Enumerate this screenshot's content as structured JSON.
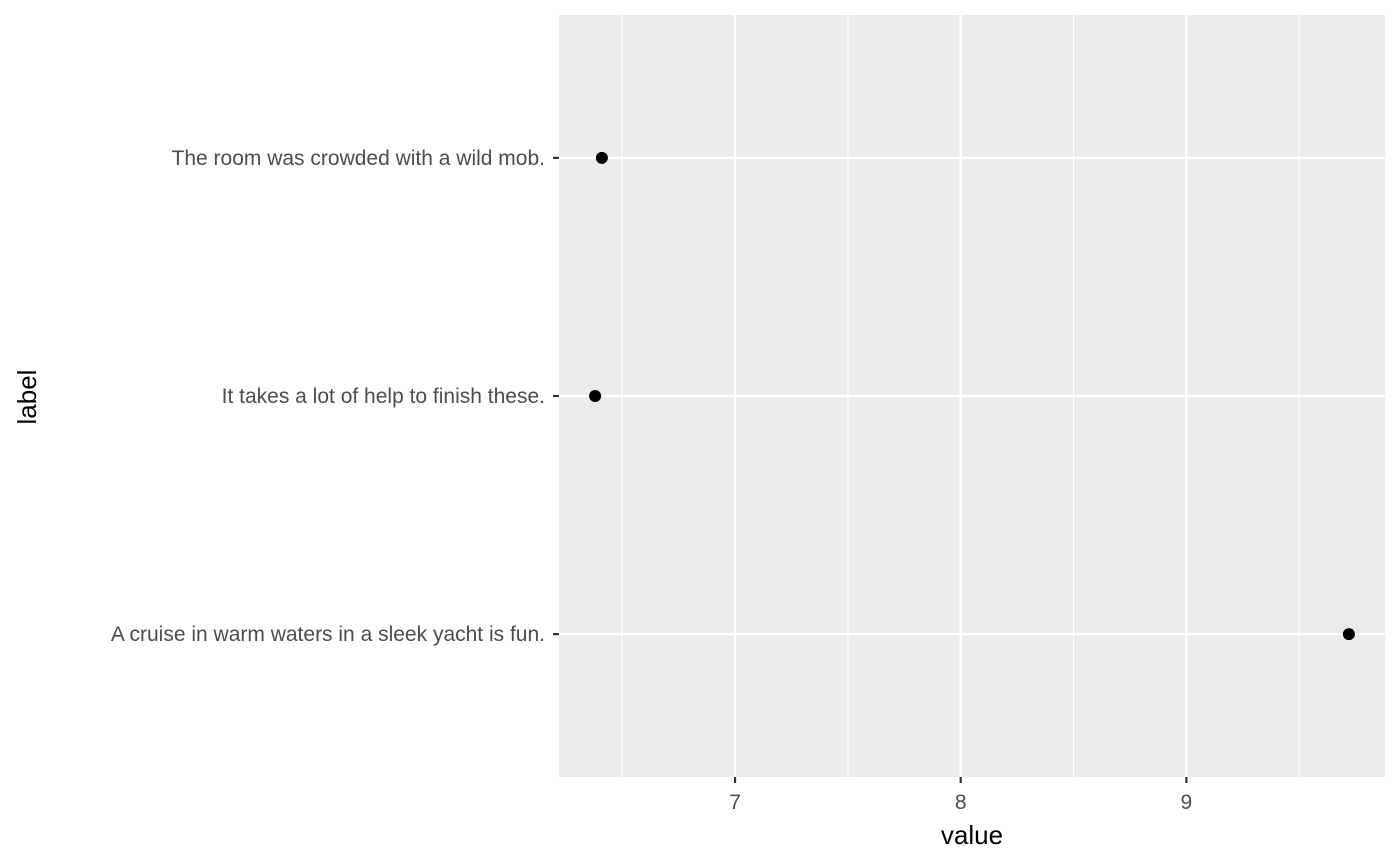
{
  "chart_data": {
    "type": "scatter",
    "xlabel": "value",
    "ylabel": "label",
    "categories": [
      "A cruise in warm waters in a sleek yacht is fun.",
      "It takes a lot of help to finish these.",
      "The room was crowded with a wild mob."
    ],
    "values": [
      9.72,
      6.38,
      6.41
    ],
    "xlim": [
      6.22,
      9.88
    ],
    "x_ticks": [
      "7",
      "8",
      "9"
    ],
    "x_tick_values": [
      7,
      8,
      9
    ],
    "x_minor_values": [
      6.5,
      7.5,
      8.5,
      9.5
    ],
    "grid": true,
    "legend": "none",
    "colors": {
      "panel": "#ebebeb",
      "grid": "#ffffff",
      "point": "#000000",
      "tick_label": "#4d4d4d"
    }
  }
}
